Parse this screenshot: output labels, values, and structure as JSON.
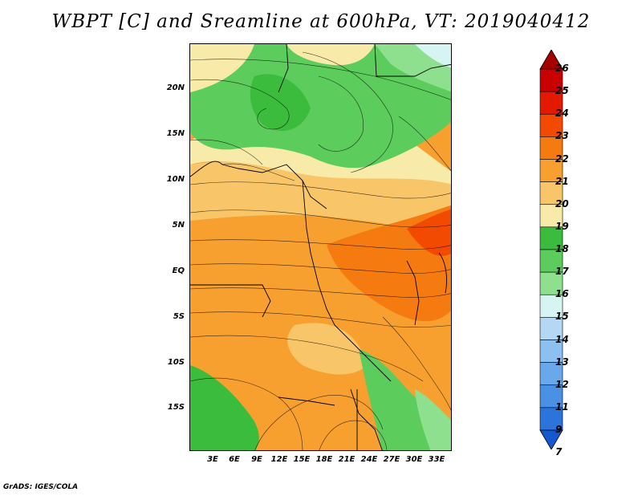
{
  "title": "WBPT [C] and Sreamline at 600hPa, VT: 2019040412",
  "footer": "GrADS: IGES/COLA",
  "lat_labels": [
    "20N",
    "15N",
    "10N",
    "5N",
    "EQ",
    "5S",
    "10S",
    "15S"
  ],
  "lon_labels": [
    "3E",
    "6E",
    "9E",
    "12E",
    "15E",
    "18E",
    "21E",
    "24E",
    "27E",
    "30E",
    "33E"
  ],
  "colorbar": {
    "labels": [
      "26",
      "25",
      "24",
      "23",
      "22",
      "21",
      "20",
      "19",
      "18",
      "17",
      "16",
      "15",
      "14",
      "13",
      "12",
      "11",
      "9",
      "7"
    ],
    "colors": [
      "#a50000",
      "#c80000",
      "#e41a00",
      "#f24a00",
      "#f57a10",
      "#f7a030",
      "#f8c668",
      "#f8eaa8",
      "#3cbc3c",
      "#5ccc5c",
      "#8ee08e",
      "#d6f4f2",
      "#b4d8f4",
      "#8cc0f0",
      "#6aa8ec",
      "#4a90e4",
      "#2c74dc",
      "#1458d0"
    ]
  }
}
